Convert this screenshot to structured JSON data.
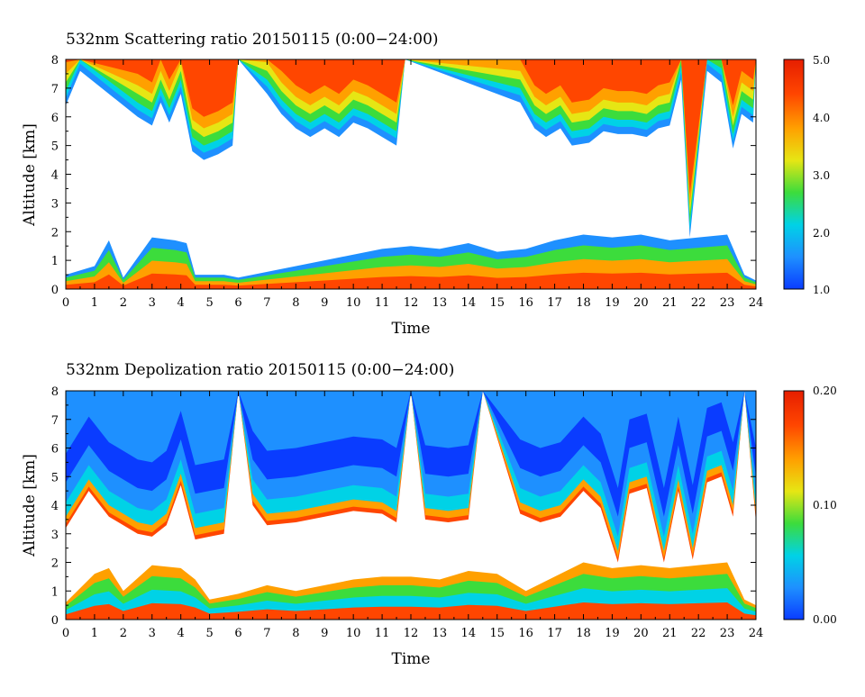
{
  "charts": [
    {
      "title": "532nm Scattering ratio  20150115 (0:00−24:00)",
      "xlabel": "Time",
      "ylabel": "Altitude [km]",
      "colorbar_ticks": [
        "5.0",
        "4.0",
        "3.0",
        "2.0",
        "1.0"
      ]
    },
    {
      "title": "532nm Depolization ratio  20150115 (0:00−24:00)",
      "xlabel": "Time",
      "ylabel": "Altitude [km]",
      "colorbar_ticks": [
        "0.20",
        "0.10",
        "0.00"
      ]
    }
  ],
  "chart_data": [
    {
      "type": "heatmap",
      "title": "532nm Scattering ratio  20150115 (0:00−24:00)",
      "xlabel": "Time",
      "ylabel": "Altitude [km]",
      "x_range": [
        0,
        24
      ],
      "y_range": [
        0,
        8
      ],
      "x_ticks": [
        0,
        1,
        2,
        3,
        4,
        5,
        6,
        7,
        8,
        9,
        10,
        11,
        12,
        13,
        14,
        15,
        16,
        17,
        18,
        19,
        20,
        21,
        22,
        23,
        24
      ],
      "y_ticks": [
        0,
        1,
        2,
        3,
        4,
        5,
        6,
        7,
        8
      ],
      "colorbar": {
        "min": 1.0,
        "max": 5.0,
        "ticks": [
          1.0,
          2.0,
          3.0,
          4.0,
          5.0
        ]
      },
      "colormap": [
        "#0a3cff",
        "#1e90ff",
        "#00d2e6",
        "#3cdc3c",
        "#e6e614",
        "#ffa000",
        "#ff4600",
        "#e61e00"
      ],
      "upper_cloud_base_km": [
        [
          0.0,
          6.4
        ],
        [
          0.5,
          7.6
        ],
        [
          2.5,
          6.0
        ],
        [
          3.0,
          5.7
        ],
        [
          3.3,
          6.5
        ],
        [
          3.6,
          5.8
        ],
        [
          4.0,
          6.8
        ],
        [
          4.4,
          4.8
        ],
        [
          4.8,
          4.5
        ],
        [
          5.3,
          4.7
        ],
        [
          5.8,
          5.0
        ],
        [
          6.0,
          8.0
        ],
        [
          7.0,
          6.8
        ],
        [
          7.5,
          6.1
        ],
        [
          8.0,
          5.6
        ],
        [
          8.5,
          5.3
        ],
        [
          9.0,
          5.6
        ],
        [
          9.5,
          5.3
        ],
        [
          10.0,
          5.8
        ],
        [
          10.5,
          5.6
        ],
        [
          11.0,
          5.3
        ],
        [
          11.5,
          5.0
        ],
        [
          11.8,
          8.0
        ],
        [
          15.8,
          6.5
        ],
        [
          16.3,
          5.6
        ],
        [
          16.7,
          5.3
        ],
        [
          17.2,
          5.6
        ],
        [
          17.6,
          5.0
        ],
        [
          18.2,
          5.1
        ],
        [
          18.7,
          5.5
        ],
        [
          19.2,
          5.4
        ],
        [
          19.7,
          5.4
        ],
        [
          20.2,
          5.3
        ],
        [
          20.6,
          5.6
        ],
        [
          21.0,
          5.7
        ],
        [
          21.4,
          7.3
        ],
        [
          21.7,
          1.8
        ],
        [
          22.3,
          7.6
        ],
        [
          22.8,
          7.2
        ],
        [
          23.2,
          4.9
        ],
        [
          23.5,
          6.1
        ],
        [
          23.9,
          5.8
        ],
        [
          24.0,
          8.0
        ]
      ],
      "boundary_layer_top_km": [
        [
          0.0,
          0.5
        ],
        [
          1.0,
          0.8
        ],
        [
          1.5,
          1.7
        ],
        [
          2.0,
          0.4
        ],
        [
          3.0,
          1.8
        ],
        [
          3.8,
          1.7
        ],
        [
          4.2,
          1.6
        ],
        [
          4.5,
          0.5
        ],
        [
          5.5,
          0.5
        ],
        [
          6.0,
          0.4
        ],
        [
          7.0,
          0.6
        ],
        [
          8.0,
          0.8
        ],
        [
          9.0,
          1.0
        ],
        [
          10.0,
          1.2
        ],
        [
          11.0,
          1.4
        ],
        [
          12.0,
          1.5
        ],
        [
          13.0,
          1.4
        ],
        [
          14.0,
          1.6
        ],
        [
          15.0,
          1.3
        ],
        [
          16.0,
          1.4
        ],
        [
          17.0,
          1.7
        ],
        [
          18.0,
          1.9
        ],
        [
          19.0,
          1.8
        ],
        [
          20.0,
          1.9
        ],
        [
          21.0,
          1.7
        ],
        [
          22.0,
          1.8
        ],
        [
          23.0,
          1.9
        ],
        [
          23.6,
          0.5
        ],
        [
          24.0,
          0.3
        ]
      ]
    },
    {
      "type": "heatmap",
      "title": "532nm Depolization ratio  20150115 (0:00−24:00)",
      "xlabel": "Time",
      "ylabel": "Altitude [km]",
      "x_range": [
        0,
        24
      ],
      "y_range": [
        0,
        8
      ],
      "x_ticks": [
        0,
        1,
        2,
        3,
        4,
        5,
        6,
        7,
        8,
        9,
        10,
        11,
        12,
        13,
        14,
        15,
        16,
        17,
        18,
        19,
        20,
        21,
        22,
        23,
        24
      ],
      "y_ticks": [
        0,
        1,
        2,
        3,
        4,
        5,
        6,
        7,
        8
      ],
      "colorbar": {
        "min": 0.0,
        "max": 0.2,
        "ticks": [
          0.0,
          0.1,
          0.2
        ]
      },
      "colormap": [
        "#0a3cff",
        "#1e90ff",
        "#00d2e6",
        "#3cdc3c",
        "#e6e614",
        "#ffa000",
        "#ff4600",
        "#e61e00"
      ],
      "upper_cloud_base_km": [
        [
          0.0,
          3.2
        ],
        [
          0.8,
          4.5
        ],
        [
          1.5,
          3.6
        ],
        [
          2.5,
          3.0
        ],
        [
          3.0,
          2.9
        ],
        [
          3.5,
          3.3
        ],
        [
          4.0,
          4.7
        ],
        [
          4.5,
          2.8
        ],
        [
          5.0,
          2.9
        ],
        [
          5.5,
          3.0
        ],
        [
          6.0,
          8.0
        ],
        [
          6.5,
          4.0
        ],
        [
          7.0,
          3.3
        ],
        [
          8.0,
          3.4
        ],
        [
          9.0,
          3.6
        ],
        [
          10.0,
          3.8
        ],
        [
          11.0,
          3.7
        ],
        [
          11.5,
          3.4
        ],
        [
          12.0,
          8.0
        ],
        [
          12.5,
          3.5
        ],
        [
          13.3,
          3.4
        ],
        [
          14.0,
          3.5
        ],
        [
          14.5,
          8.0
        ],
        [
          15.8,
          3.7
        ],
        [
          16.5,
          3.4
        ],
        [
          17.2,
          3.6
        ],
        [
          18.0,
          4.5
        ],
        [
          18.6,
          3.9
        ],
        [
          19.2,
          2.0
        ],
        [
          19.6,
          4.4
        ],
        [
          20.2,
          4.6
        ],
        [
          20.8,
          2.0
        ],
        [
          21.3,
          4.5
        ],
        [
          21.8,
          2.1
        ],
        [
          22.3,
          4.8
        ],
        [
          22.8,
          5.0
        ],
        [
          23.2,
          3.6
        ],
        [
          23.6,
          8.0
        ],
        [
          24.0,
          3.4
        ]
      ],
      "boundary_layer_top_km": [
        [
          0.0,
          0.6
        ],
        [
          1.0,
          1.6
        ],
        [
          1.5,
          1.8
        ],
        [
          2.0,
          1.0
        ],
        [
          3.0,
          1.9
        ],
        [
          4.0,
          1.8
        ],
        [
          4.5,
          1.4
        ],
        [
          5.0,
          0.7
        ],
        [
          6.0,
          0.9
        ],
        [
          7.0,
          1.2
        ],
        [
          8.0,
          1.0
        ],
        [
          9.0,
          1.2
        ],
        [
          10.0,
          1.4
        ],
        [
          11.0,
          1.5
        ],
        [
          12.0,
          1.5
        ],
        [
          13.0,
          1.4
        ],
        [
          14.0,
          1.7
        ],
        [
          15.0,
          1.6
        ],
        [
          16.0,
          1.0
        ],
        [
          17.0,
          1.5
        ],
        [
          18.0,
          2.0
        ],
        [
          19.0,
          1.8
        ],
        [
          20.0,
          1.9
        ],
        [
          21.0,
          1.8
        ],
        [
          22.0,
          1.9
        ],
        [
          23.0,
          2.0
        ],
        [
          23.6,
          0.7
        ],
        [
          24.0,
          0.5
        ]
      ]
    }
  ]
}
